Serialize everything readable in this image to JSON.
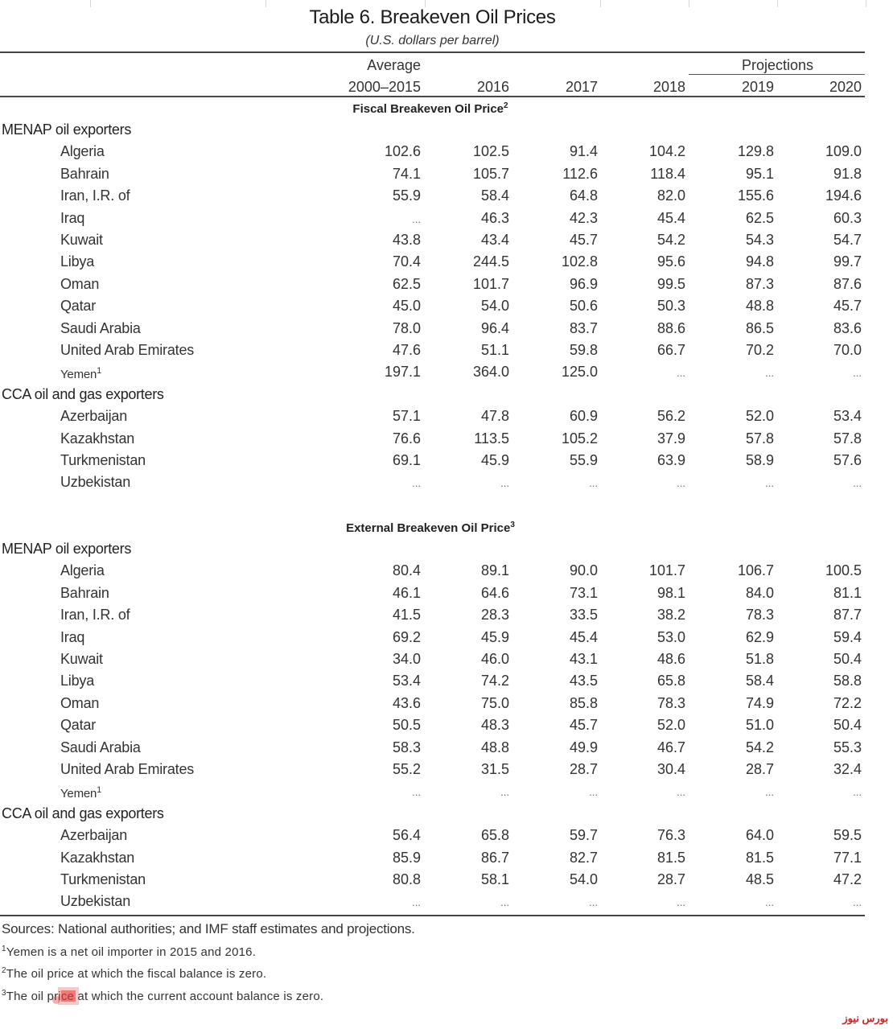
{
  "title": "Table 6. Breakeven Oil Prices",
  "subtitle": "(U.S. dollars per barrel)",
  "header": {
    "average_line1": "Average",
    "average_line2": "2000–2015",
    "projections_label": "Projections",
    "years": [
      "2016",
      "2017",
      "2018",
      "2019",
      "2020"
    ]
  },
  "sections": [
    {
      "title": "Fiscal Breakeven Oil Price",
      "footnote_mark": "2",
      "groups": [
        {
          "name": "MENAP oil exporters",
          "rows": [
            {
              "country": "Algeria",
              "note": "",
              "values": [
                "102.6",
                "102.5",
                "91.4",
                "104.2",
                "129.8",
                "109.0"
              ]
            },
            {
              "country": "Bahrain",
              "note": "",
              "values": [
                "74.1",
                "105.7",
                "112.6",
                "118.4",
                "95.1",
                "91.8"
              ]
            },
            {
              "country": "Iran, I.R. of",
              "note": "",
              "values": [
                "55.9",
                "58.4",
                "64.8",
                "82.0",
                "155.6",
                "194.6"
              ]
            },
            {
              "country": "Iraq",
              "note": "",
              "values": [
                "...",
                "46.3",
                "42.3",
                "45.4",
                "62.5",
                "60.3"
              ]
            },
            {
              "country": "Kuwait",
              "note": "",
              "values": [
                "43.8",
                "43.4",
                "45.7",
                "54.2",
                "54.3",
                "54.7"
              ]
            },
            {
              "country": "Libya",
              "note": "",
              "values": [
                "70.4",
                "244.5",
                "102.8",
                "95.6",
                "94.8",
                "99.7"
              ]
            },
            {
              "country": "Oman",
              "note": "",
              "values": [
                "62.5",
                "101.7",
                "96.9",
                "99.5",
                "87.3",
                "87.6"
              ]
            },
            {
              "country": "Qatar",
              "note": "",
              "values": [
                "45.0",
                "54.0",
                "50.6",
                "50.3",
                "48.8",
                "45.7"
              ]
            },
            {
              "country": "Saudi Arabia",
              "note": "",
              "values": [
                "78.0",
                "96.4",
                "83.7",
                "88.6",
                "86.5",
                "83.6"
              ]
            },
            {
              "country": "United Arab Emirates",
              "note": "",
              "values": [
                "47.6",
                "51.1",
                "59.8",
                "66.7",
                "70.2",
                "70.0"
              ]
            },
            {
              "country": "Yemen",
              "note": "1",
              "values": [
                "197.1",
                "364.0",
                "125.0",
                "...",
                "...",
                "..."
              ]
            }
          ]
        },
        {
          "name": "CCA oil and gas exporters",
          "rows": [
            {
              "country": "Azerbaijan",
              "note": "",
              "values": [
                "57.1",
                "47.8",
                "60.9",
                "56.2",
                "52.0",
                "53.4"
              ]
            },
            {
              "country": "Kazakhstan",
              "note": "",
              "values": [
                "76.6",
                "113.5",
                "105.2",
                "37.9",
                "57.8",
                "57.8"
              ]
            },
            {
              "country": "Turkmenistan",
              "note": "",
              "values": [
                "69.1",
                "45.9",
                "55.9",
                "63.9",
                "58.9",
                "57.6"
              ]
            },
            {
              "country": "Uzbekistan",
              "note": "",
              "values": [
                "...",
                "...",
                "...",
                "...",
                "...",
                "..."
              ]
            }
          ]
        }
      ]
    },
    {
      "title": "External Breakeven Oil Price",
      "footnote_mark": "3",
      "groups": [
        {
          "name": "MENAP oil exporters",
          "rows": [
            {
              "country": "Algeria",
              "note": "",
              "values": [
                "80.4",
                "89.1",
                "90.0",
                "101.7",
                "106.7",
                "100.5"
              ]
            },
            {
              "country": "Bahrain",
              "note": "",
              "values": [
                "46.1",
                "64.6",
                "73.1",
                "98.1",
                "84.0",
                "81.1"
              ]
            },
            {
              "country": "Iran, I.R. of",
              "note": "",
              "values": [
                "41.5",
                "28.3",
                "33.5",
                "38.2",
                "78.3",
                "87.7"
              ]
            },
            {
              "country": "Iraq",
              "note": "",
              "values": [
                "69.2",
                "45.9",
                "45.4",
                "53.0",
                "62.9",
                "59.4"
              ]
            },
            {
              "country": "Kuwait",
              "note": "",
              "values": [
                "34.0",
                "46.0",
                "43.1",
                "48.6",
                "51.8",
                "50.4"
              ]
            },
            {
              "country": "Libya",
              "note": "",
              "values": [
                "53.4",
                "74.2",
                "43.5",
                "65.8",
                "58.4",
                "58.8"
              ]
            },
            {
              "country": "Oman",
              "note": "",
              "values": [
                "43.6",
                "75.0",
                "85.8",
                "78.3",
                "74.9",
                "72.2"
              ]
            },
            {
              "country": "Qatar",
              "note": "",
              "values": [
                "50.5",
                "48.3",
                "45.7",
                "52.0",
                "51.0",
                "50.4"
              ]
            },
            {
              "country": "Saudi Arabia",
              "note": "",
              "values": [
                "58.3",
                "48.8",
                "49.9",
                "46.7",
                "54.2",
                "55.3"
              ]
            },
            {
              "country": "United Arab Emirates",
              "note": "",
              "values": [
                "55.2",
                "31.5",
                "28.7",
                "30.4",
                "28.7",
                "32.4"
              ]
            },
            {
              "country": "Yemen",
              "note": "1",
              "values": [
                "...",
                "...",
                "...",
                "...",
                "...",
                "..."
              ]
            }
          ]
        },
        {
          "name": "CCA oil and gas exporters",
          "rows": [
            {
              "country": "Azerbaijan",
              "note": "",
              "values": [
                "56.4",
                "65.8",
                "59.7",
                "76.3",
                "64.0",
                "59.5"
              ]
            },
            {
              "country": "Kazakhstan",
              "note": "",
              "values": [
                "85.9",
                "86.7",
                "82.7",
                "81.5",
                "81.5",
                "77.1"
              ]
            },
            {
              "country": "Turkmenistan",
              "note": "",
              "values": [
                "80.8",
                "58.1",
                "54.0",
                "28.7",
                "48.5",
                "47.2"
              ]
            },
            {
              "country": "Uzbekistan",
              "note": "",
              "values": [
                "...",
                "...",
                "...",
                "...",
                "...",
                "..."
              ]
            }
          ]
        }
      ]
    }
  ],
  "footer": {
    "sources": "Sources: National authorities; and IMF staff estimates and projections.",
    "notes": [
      {
        "mark": "1",
        "text": "Yemen is a net oil importer in 2015 and 2016."
      },
      {
        "mark": "2",
        "text": "The oil price at which the fiscal balance is zero."
      },
      {
        "mark": "3",
        "text": "The oil price at which the current account balance is zero."
      }
    ]
  },
  "watermark": "بورس نیوز",
  "colors": {
    "rule": "#444444",
    "text": "#222222",
    "watermark": "#c62828"
  }
}
